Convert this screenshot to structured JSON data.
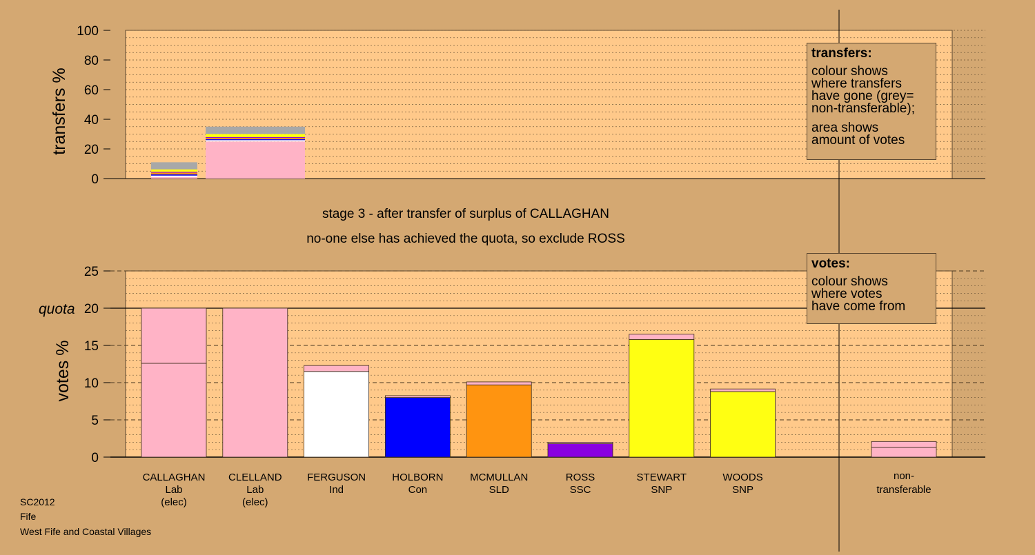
{
  "stage_title": "stage 3 - after transfer of surplus of CALLAGHAN",
  "stage_subtitle": "no-one else has achieved the quota, so exclude ROSS",
  "transfers_box": {
    "heading": "transfers:",
    "line1": "colour shows",
    "line2": "where transfers",
    "line3": "have gone (grey=",
    "line4": "non-transferable);",
    "line5": "area shows",
    "line6": "amount of votes"
  },
  "votes_box": {
    "heading": "votes:",
    "line1": "colour shows",
    "line2": "where votes",
    "line3": "have come from"
  },
  "footer": {
    "line1": "SC2012",
    "line2": "Fife",
    "line3": "West Fife and Coastal Villages"
  },
  "colors": {
    "background": "#d4a872",
    "plot_background": "#ffc98a",
    "Lab": "#ffb3c6",
    "Ind": "#ffffff",
    "Con": "#0000ff",
    "SLD": "#ff9410",
    "SSC": "#8a00e0",
    "SNP": "#ffff12",
    "nontransferable": "#a8a8a8"
  },
  "chart_data": [
    {
      "type": "bar",
      "name": "transfers",
      "ylabel": "transfers %",
      "ylim": [
        0,
        100
      ],
      "yticks": [
        0,
        20,
        40,
        60,
        80,
        100
      ],
      "grid": true,
      "bars": [
        {
          "segments": [
            {
              "party": "Lab",
              "value": 1.0
            },
            {
              "party": "Ind",
              "value": 1.0
            },
            {
              "party": "Con",
              "value": 0.8
            },
            {
              "party": "SLD",
              "value": 1.2
            },
            {
              "party": "SSC",
              "value": 0.6
            },
            {
              "party": "SNP",
              "value": 1.6
            },
            {
              "party": "nontransferable",
              "value": 4.8
            }
          ]
        },
        {
          "segments": [
            {
              "party": "Lab",
              "value": 25.0
            },
            {
              "party": "Ind",
              "value": 0.9
            },
            {
              "party": "Con",
              "value": 0.6
            },
            {
              "party": "SLD",
              "value": 0.9
            },
            {
              "party": "SSC",
              "value": 0.5
            },
            {
              "party": "SNP",
              "value": 2.2
            },
            {
              "party": "nontransferable",
              "value": 4.9
            }
          ]
        }
      ]
    },
    {
      "type": "bar",
      "name": "votes",
      "ylabel": "votes %",
      "ylim": [
        0,
        25
      ],
      "yticks": [
        0,
        5,
        10,
        15,
        20,
        25
      ],
      "quota": 20,
      "quota_label": "quota",
      "grid": true,
      "candidates": [
        {
          "name": "CALLAGHAN",
          "party": "Lab",
          "status": "(elec)",
          "segments": [
            {
              "party": "Lab",
              "value": 12.6
            },
            {
              "party": "Lab",
              "value": 7.4
            }
          ]
        },
        {
          "name": "CLELLAND",
          "party": "Lab",
          "status": "(elec)",
          "segments": [
            {
              "party": "Lab",
              "value": 20.0
            }
          ]
        },
        {
          "name": "FERGUSON",
          "party": "Ind",
          "status": "",
          "segments": [
            {
              "party": "Ind",
              "value": 11.5
            },
            {
              "party": "Lab",
              "value": 0.8
            }
          ]
        },
        {
          "name": "HOLBORN",
          "party": "Con",
          "status": "",
          "segments": [
            {
              "party": "Con",
              "value": 8.0
            },
            {
              "party": "Lab",
              "value": 0.25
            }
          ]
        },
        {
          "name": "MCMULLAN",
          "party": "SLD",
          "status": "",
          "segments": [
            {
              "party": "SLD",
              "value": 9.7
            },
            {
              "party": "Lab",
              "value": 0.4
            }
          ]
        },
        {
          "name": "ROSS",
          "party": "SSC",
          "status": "",
          "segments": [
            {
              "party": "SSC",
              "value": 1.8
            },
            {
              "party": "Lab",
              "value": 0.2
            }
          ]
        },
        {
          "name": "STEWART",
          "party": "SNP",
          "status": "",
          "segments": [
            {
              "party": "SNP",
              "value": 15.8
            },
            {
              "party": "Lab",
              "value": 0.7
            }
          ]
        },
        {
          "name": "WOODS",
          "party": "SNP",
          "status": "",
          "segments": [
            {
              "party": "SNP",
              "value": 8.8
            },
            {
              "party": "Lab",
              "value": 0.35
            }
          ]
        }
      ],
      "nontransferable": {
        "label1": "non-",
        "label2": "transferable",
        "segments": [
          {
            "party": "Lab",
            "value": 1.3
          },
          {
            "party": "Lab",
            "value": 0.8
          }
        ]
      }
    }
  ]
}
